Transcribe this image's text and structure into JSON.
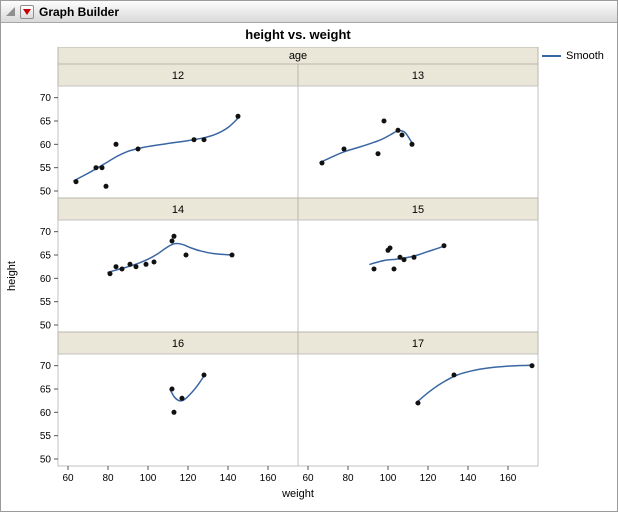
{
  "window": {
    "title": "Graph Builder"
  },
  "chart_data": {
    "type": "scatter",
    "title": "height vs. weight",
    "xlabel": "weight",
    "ylabel": "height",
    "facet_variable": "age",
    "legend": {
      "label": "Smooth"
    },
    "x_ticks": [
      60,
      80,
      100,
      120,
      140,
      160
    ],
    "y_ticks": [
      70,
      65,
      60,
      55,
      50
    ],
    "xlim": [
      55,
      175
    ],
    "ylim": [
      48.5,
      72.5
    ],
    "grid": false,
    "layout": {
      "columns": 2,
      "rows": 3,
      "legend_position": "top-right"
    },
    "colors": {
      "smooth": "#3a66a3",
      "point": "#111111",
      "band_bg": "#eae7d8",
      "band_border": "#b9b6aa",
      "panel_border": "#c2c2c2",
      "tick": "#555555"
    },
    "facets": [
      {
        "label": "12",
        "points": [
          [
            64,
            52
          ],
          [
            74,
            55
          ],
          [
            77,
            55
          ],
          [
            79,
            51
          ],
          [
            84,
            60
          ],
          [
            95,
            59
          ],
          [
            123,
            61
          ],
          [
            128,
            61
          ],
          [
            145,
            66
          ]
        ],
        "smooth": [
          [
            63,
            52.2
          ],
          [
            70,
            53.8
          ],
          [
            77,
            55.5
          ],
          [
            84,
            57.3
          ],
          [
            90,
            58.5
          ],
          [
            96,
            59.2
          ],
          [
            104,
            59.8
          ],
          [
            112,
            60.3
          ],
          [
            120,
            60.8
          ],
          [
            128,
            61.4
          ],
          [
            134,
            62.2
          ],
          [
            140,
            63.6
          ],
          [
            145,
            65.6
          ]
        ]
      },
      {
        "label": "13",
        "points": [
          [
            67,
            56
          ],
          [
            78,
            59
          ],
          [
            95,
            58
          ],
          [
            98,
            65
          ],
          [
            105,
            63
          ],
          [
            107,
            62
          ],
          [
            112,
            60
          ]
        ],
        "smooth": [
          [
            66,
            56.1
          ],
          [
            72,
            57.3
          ],
          [
            78,
            58.4
          ],
          [
            84,
            59.2
          ],
          [
            90,
            60
          ],
          [
            96,
            60.9
          ],
          [
            101,
            62
          ],
          [
            105,
            62.9
          ],
          [
            108,
            62.7
          ],
          [
            110,
            61.7
          ],
          [
            112,
            60.3
          ]
        ]
      },
      {
        "label": "14",
        "points": [
          [
            81,
            61
          ],
          [
            84,
            62.5
          ],
          [
            87,
            62
          ],
          [
            91,
            63
          ],
          [
            94,
            62.5
          ],
          [
            99,
            63
          ],
          [
            103,
            63.5
          ],
          [
            112,
            68
          ],
          [
            113,
            69
          ],
          [
            119,
            65
          ],
          [
            142,
            65
          ]
        ],
        "smooth": [
          [
            80,
            61.3
          ],
          [
            85,
            61.9
          ],
          [
            90,
            62.5
          ],
          [
            95,
            63.2
          ],
          [
            100,
            64.1
          ],
          [
            105,
            65.3
          ],
          [
            109,
            66.5
          ],
          [
            113,
            67.4
          ],
          [
            117,
            67.3
          ],
          [
            121,
            66.6
          ],
          [
            126,
            65.9
          ],
          [
            133,
            65.3
          ],
          [
            142,
            65
          ]
        ]
      },
      {
        "label": "15",
        "points": [
          [
            93,
            62
          ],
          [
            100,
            66
          ],
          [
            101,
            66.5
          ],
          [
            103,
            62
          ],
          [
            106,
            64.5
          ],
          [
            108,
            64
          ],
          [
            113,
            64.5
          ],
          [
            128,
            67
          ]
        ],
        "smooth": [
          [
            91,
            63
          ],
          [
            95,
            63.5
          ],
          [
            99,
            63.9
          ],
          [
            104,
            64.1
          ],
          [
            109,
            64.4
          ],
          [
            114,
            64.9
          ],
          [
            119,
            65.6
          ],
          [
            124,
            66.3
          ],
          [
            128,
            66.9
          ]
        ]
      },
      {
        "label": "16",
        "points": [
          [
            112,
            65
          ],
          [
            113,
            60
          ],
          [
            117,
            63
          ],
          [
            128,
            68
          ]
        ],
        "smooth": [
          [
            111,
            64.9
          ],
          [
            113,
            63.4
          ],
          [
            115,
            62.6
          ],
          [
            117,
            62.5
          ],
          [
            119,
            63
          ],
          [
            122,
            64.3
          ],
          [
            125,
            65.9
          ],
          [
            128,
            67.8
          ]
        ]
      },
      {
        "label": "17",
        "points": [
          [
            115,
            62
          ],
          [
            133,
            68
          ],
          [
            172,
            70
          ]
        ],
        "smooth": [
          [
            114,
            62
          ],
          [
            120,
            64.2
          ],
          [
            127,
            66.3
          ],
          [
            134,
            67.9
          ],
          [
            142,
            68.9
          ],
          [
            150,
            69.5
          ],
          [
            160,
            69.9
          ],
          [
            171,
            70.1
          ]
        ]
      }
    ]
  }
}
